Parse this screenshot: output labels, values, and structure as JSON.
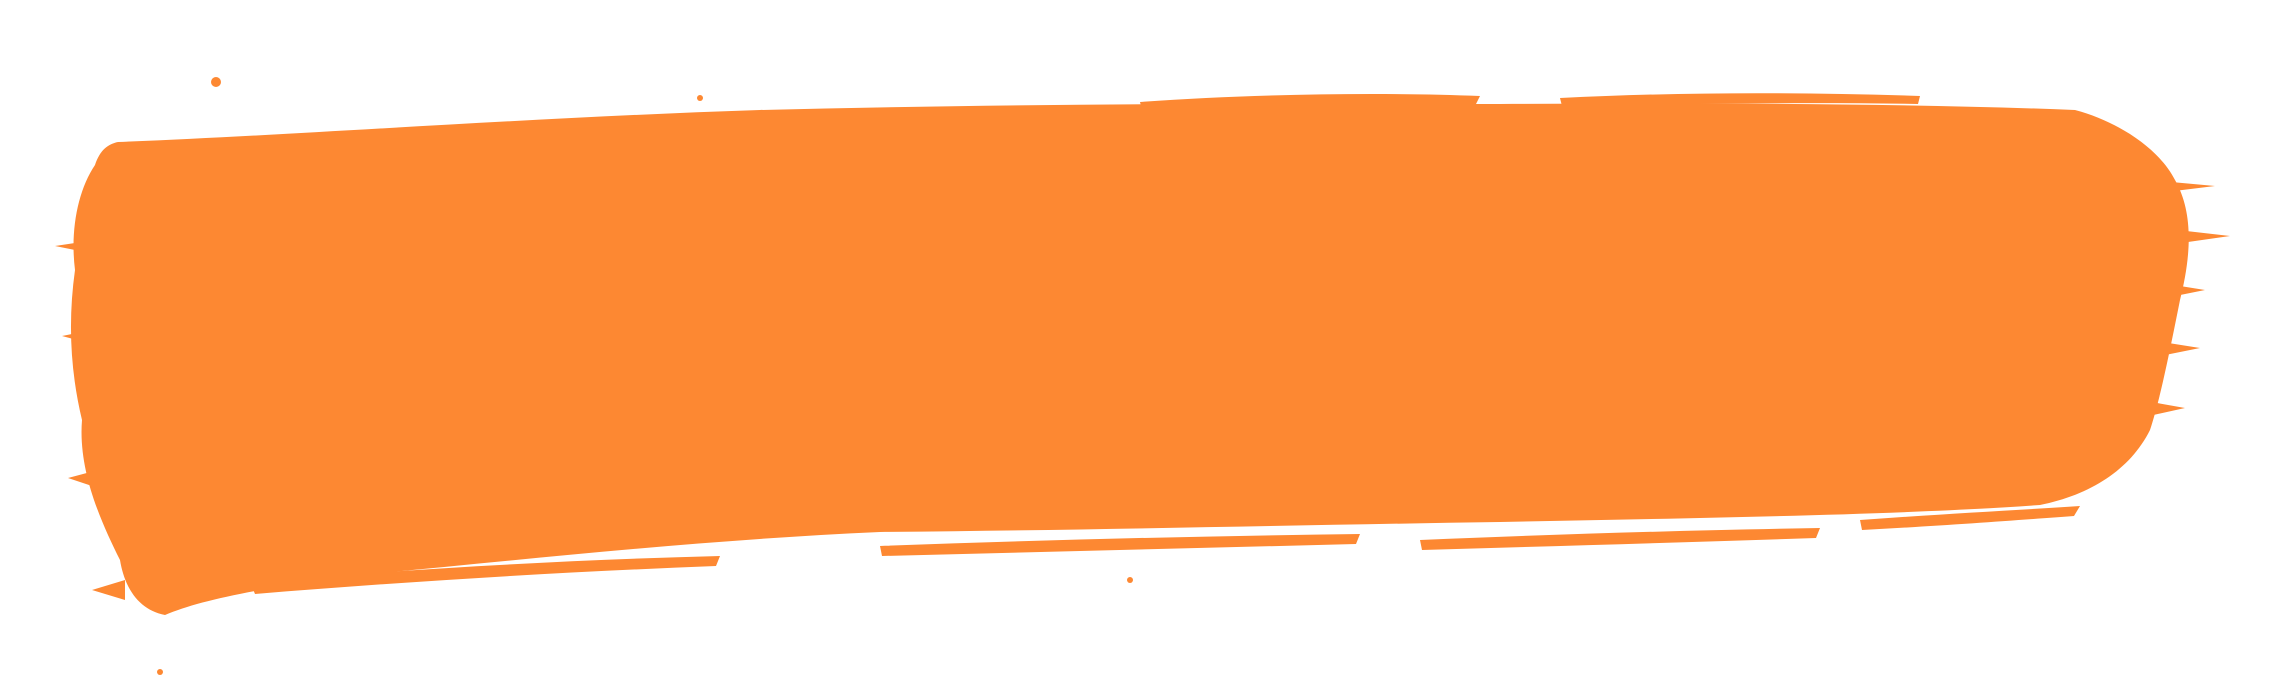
{
  "background_color": "#ffffff",
  "brush_color": "#fd8832",
  "graphic": "orange-brush-stroke"
}
